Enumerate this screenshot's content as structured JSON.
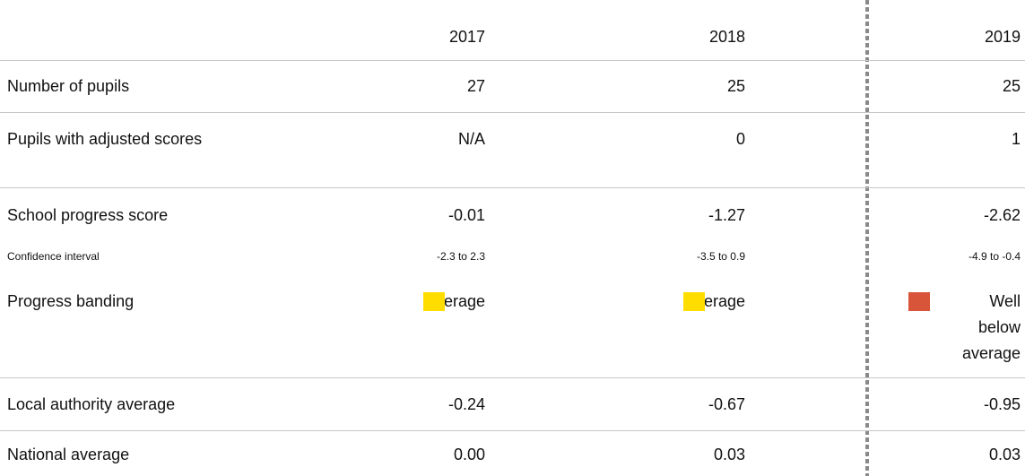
{
  "table": {
    "columns": [
      "2017",
      "2018",
      "2019"
    ],
    "rows": [
      {
        "label": "Number of pupils",
        "cells": [
          "27",
          "25",
          "25"
        ]
      },
      {
        "label": "Pupils with adjusted scores",
        "cells": [
          "N/A",
          "0",
          "1"
        ]
      },
      {
        "label": "School progress score",
        "cells": [
          "-0.01",
          "-1.27",
          "-2.62"
        ]
      },
      {
        "label": "Confidence interval",
        "cells": [
          "-2.3 to 2.3",
          "-3.5 to 0.9",
          "-4.9 to -0.4"
        ]
      },
      {
        "label": "Progress banding",
        "cells": [
          {
            "text": "Average",
            "color": "#ffdd00"
          },
          {
            "text": "Average",
            "color": "#ffdd00"
          },
          {
            "text": "Well below average",
            "color": "#d9553a"
          }
        ]
      },
      {
        "label": "Local authority average",
        "cells": [
          "-0.24",
          "-0.67",
          "-0.95"
        ]
      },
      {
        "label": "National average",
        "cells": [
          "0.00",
          "0.03",
          "0.03"
        ]
      }
    ]
  }
}
